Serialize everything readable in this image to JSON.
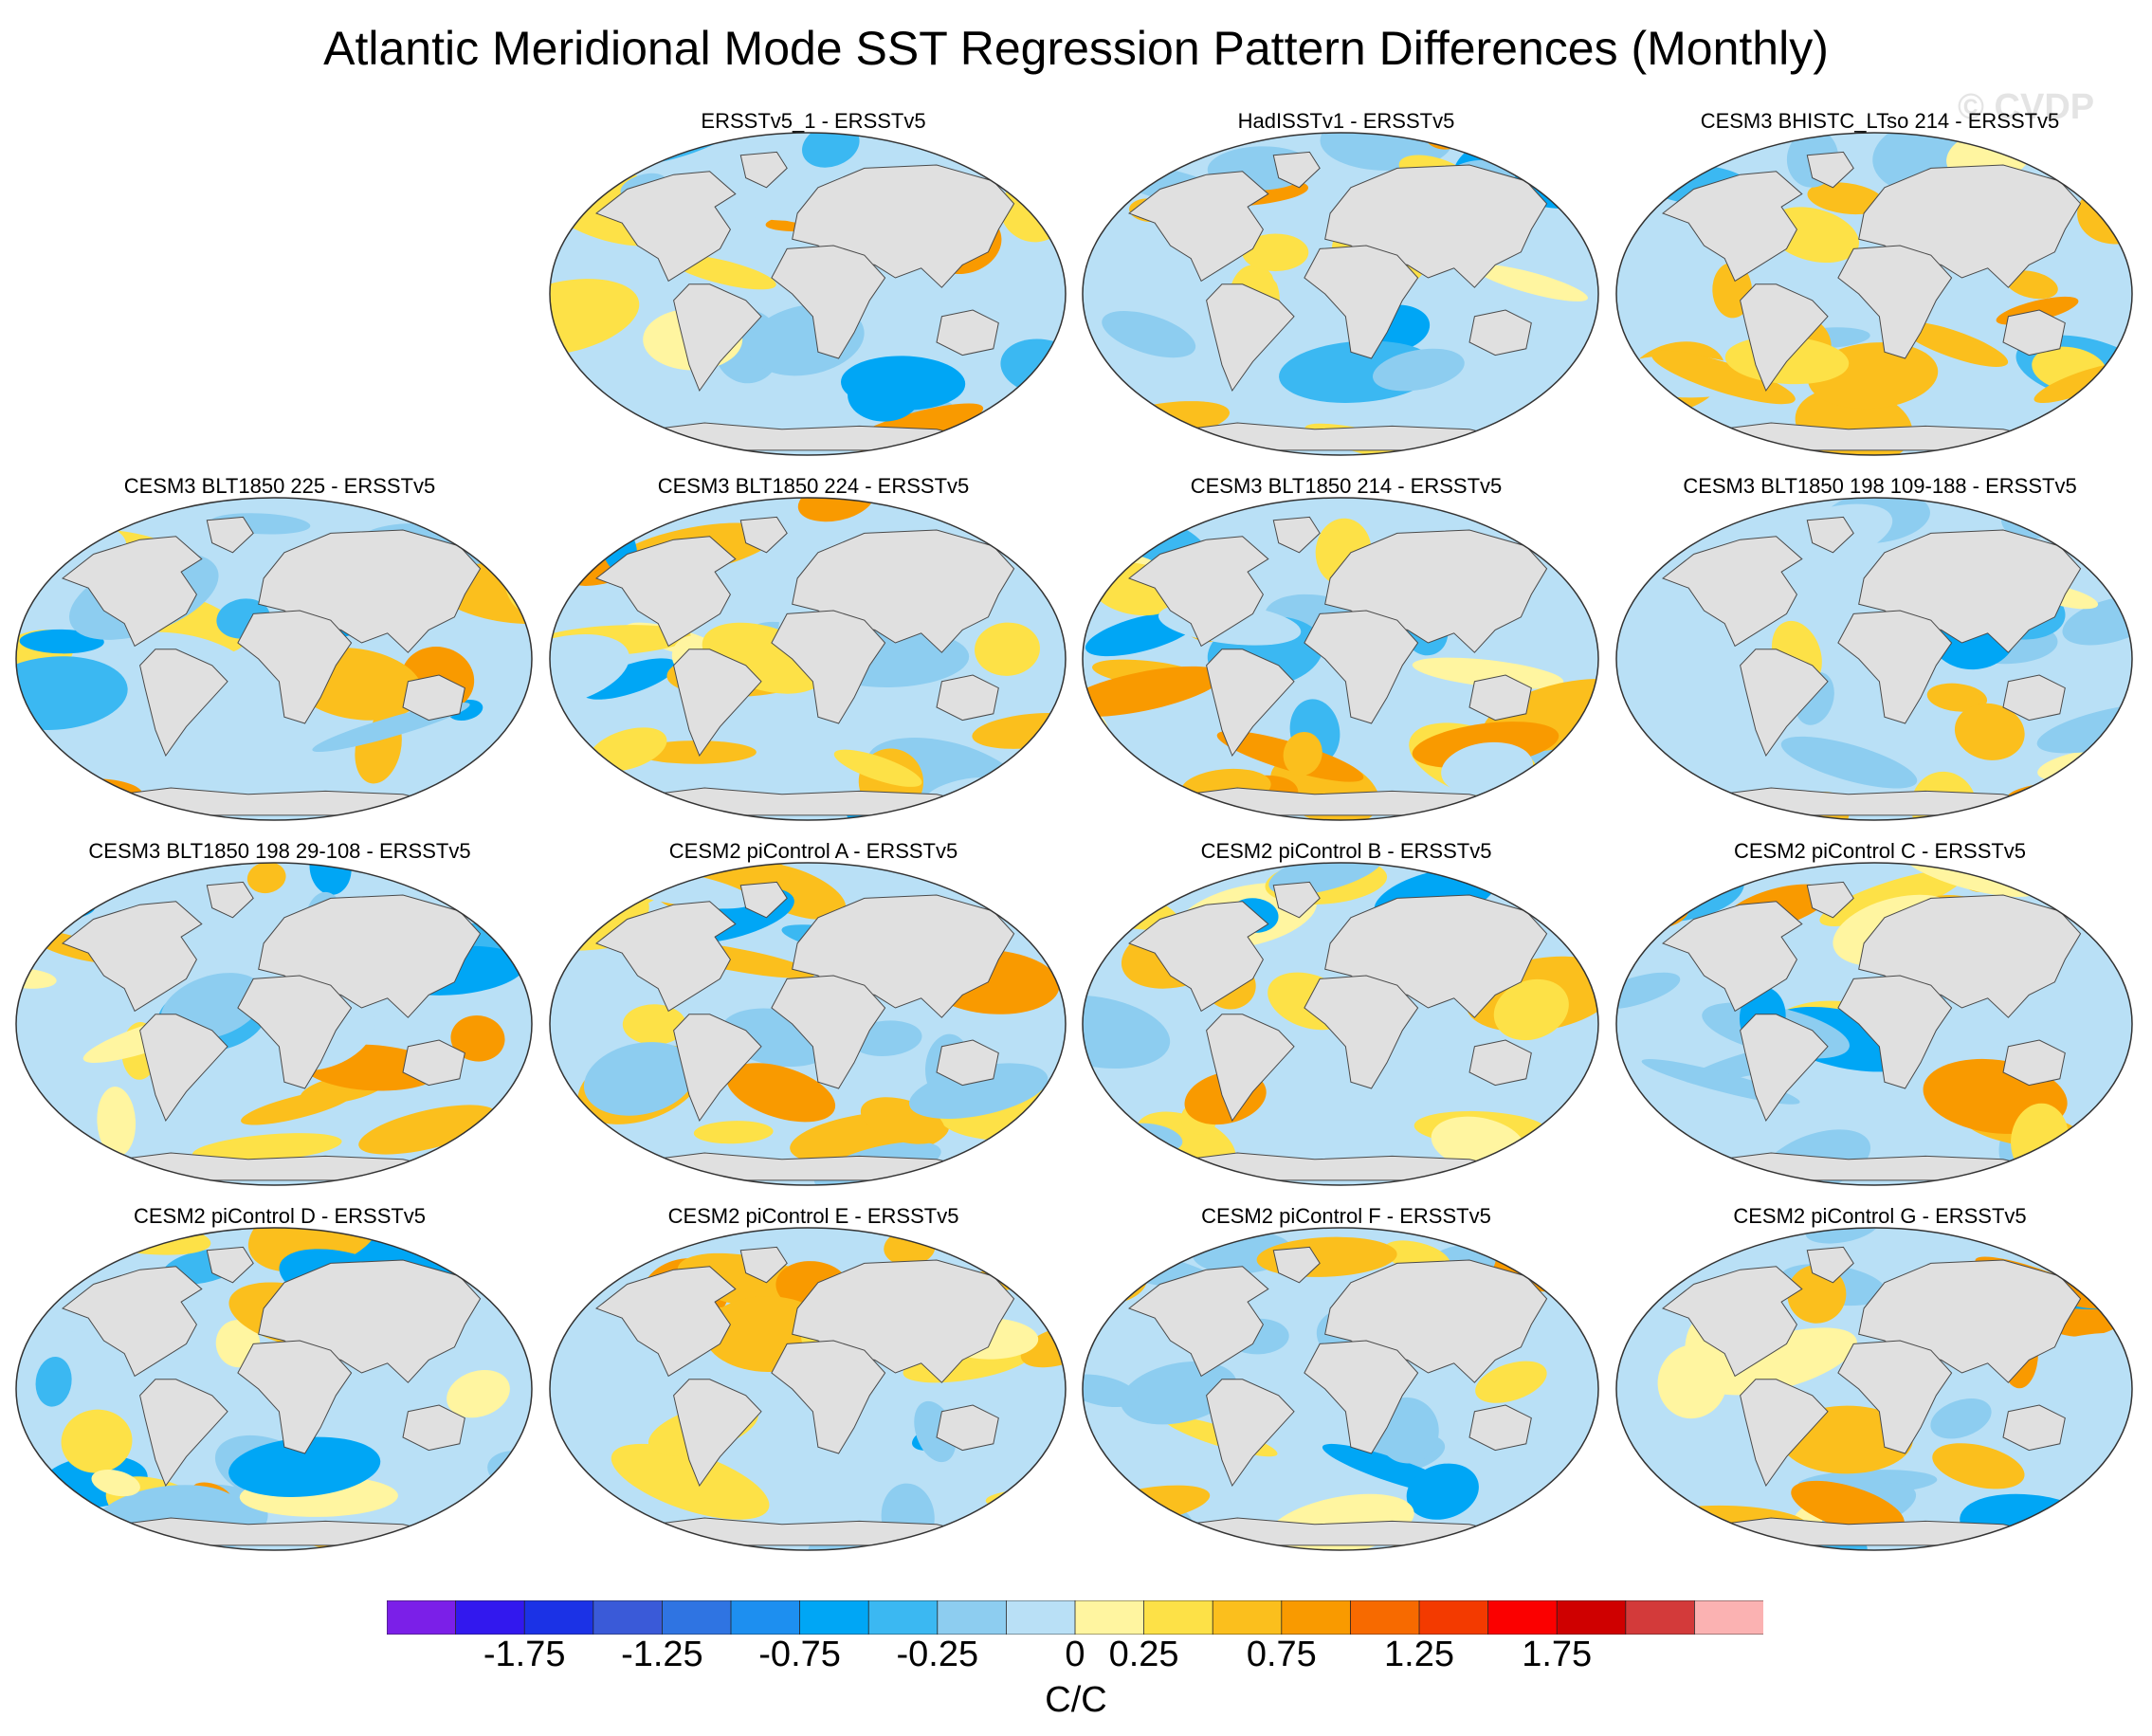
{
  "chart_data": {
    "type": "heatmap",
    "title": "Atlantic Meridional Mode SST Regression Pattern Differences (Monthly)",
    "watermark": "© CVDP",
    "colorbar": {
      "units": "C/C",
      "tick_labels": [
        "-1.75",
        "-1.25",
        "-0.75",
        "-0.25",
        "0",
        "0.25",
        "0.75",
        "1.25",
        "1.75"
      ],
      "colors": [
        "#7b1fe8",
        "#3218ee",
        "#1b32e6",
        "#3a5ad8",
        "#2f74e2",
        "#1d8ff0",
        "#00a6f5",
        "#3bb8f2",
        "#8dcdf0",
        "#b9e0f6",
        "#fff5a0",
        "#fde147",
        "#fbbf1d",
        "#f99a00",
        "#f76a00",
        "#f33a00",
        "#fb0000",
        "#cf0000",
        "#d33a3a",
        "#fbb2b2"
      ]
    },
    "panels": [
      {
        "title": "ERSSTv5_1 - ERSSTv5",
        "row": 0,
        "col": 1
      },
      {
        "title": "HadISSTv1 - ERSSTv5",
        "row": 0,
        "col": 2
      },
      {
        "title": "CESM3 BHISTC_LTso 214 - ERSSTv5",
        "row": 0,
        "col": 3
      },
      {
        "title": "CESM3 BLT1850 225 - ERSSTv5",
        "row": 1,
        "col": 0
      },
      {
        "title": "CESM3 BLT1850 224 - ERSSTv5",
        "row": 1,
        "col": 1
      },
      {
        "title": "CESM3 BLT1850 214 - ERSSTv5",
        "row": 1,
        "col": 2
      },
      {
        "title": "CESM3 BLT1850 198 109-188 - ERSSTv5",
        "row": 1,
        "col": 3
      },
      {
        "title": "CESM3 BLT1850 198 29-108 - ERSSTv5",
        "row": 2,
        "col": 0
      },
      {
        "title": "CESM2 piControl A - ERSSTv5",
        "row": 2,
        "col": 1
      },
      {
        "title": "CESM2 piControl B - ERSSTv5",
        "row": 2,
        "col": 2
      },
      {
        "title": "CESM2 piControl C - ERSSTv5",
        "row": 2,
        "col": 3
      },
      {
        "title": "CESM2 piControl D - ERSSTv5",
        "row": 3,
        "col": 0
      },
      {
        "title": "CESM2 piControl E - ERSSTv5",
        "row": 3,
        "col": 1
      },
      {
        "title": "CESM2 piControl F - ERSSTv5",
        "row": 3,
        "col": 2
      },
      {
        "title": "CESM2 piControl G - ERSSTv5",
        "row": 3,
        "col": 3
      }
    ]
  }
}
